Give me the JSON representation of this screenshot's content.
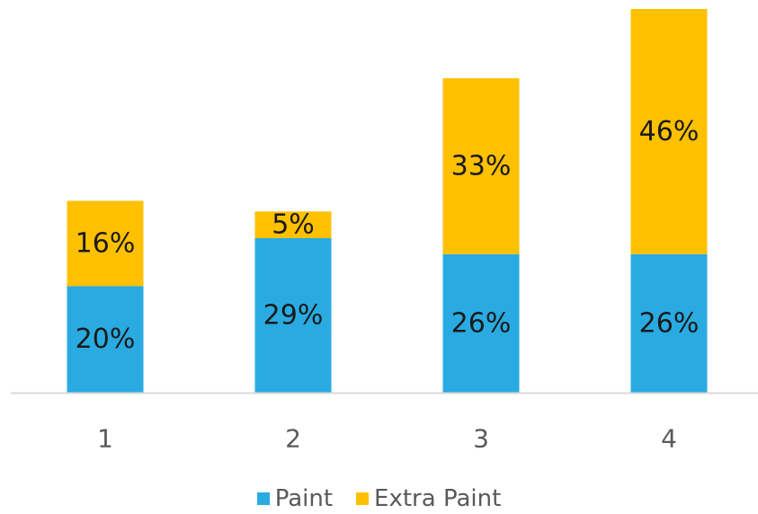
{
  "chart_data": {
    "type": "bar",
    "stacked": true,
    "categories": [
      "1",
      "2",
      "3",
      "4"
    ],
    "series": [
      {
        "name": "Paint",
        "values": [
          20,
          29,
          26,
          26
        ],
        "labels": [
          "20%",
          "29%",
          "26%",
          "26%"
        ],
        "color": "#29ABE2"
      },
      {
        "name": "Extra Paint",
        "values": [
          16,
          5,
          33,
          46
        ],
        "labels": [
          "16%",
          "5%",
          "33%",
          "46%"
        ],
        "color": "#FFC000"
      }
    ],
    "ylim": [
      0,
      72
    ],
    "grid": false,
    "legend_position": "bottom",
    "axis_color": "#d9d9d9"
  }
}
